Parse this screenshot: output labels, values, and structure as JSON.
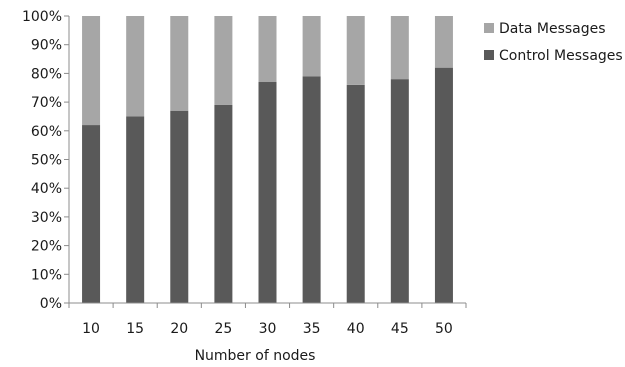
{
  "chart_data": {
    "type": "bar",
    "stacked": "percent",
    "title": "",
    "xlabel": "Number of nodes",
    "ylabel": "",
    "categories": [
      "10",
      "15",
      "20",
      "25",
      "30",
      "35",
      "40",
      "45",
      "50"
    ],
    "series": [
      {
        "name": "Control Messages",
        "color": "#595959",
        "values": [
          62,
          65,
          67,
          69,
          77,
          79,
          76,
          78,
          82
        ]
      },
      {
        "name": "Data Messages",
        "color": "#a6a6a6",
        "values": [
          38,
          35,
          33,
          31,
          23,
          21,
          24,
          22,
          18
        ]
      }
    ],
    "ylim": [
      0,
      100
    ],
    "yticks": [
      "0%",
      "10%",
      "20%",
      "30%",
      "40%",
      "50%",
      "60%",
      "70%",
      "80%",
      "90%",
      "100%"
    ],
    "legend_position": "right",
    "legend_order": [
      "Data Messages",
      "Control Messages"
    ],
    "grid": false
  }
}
